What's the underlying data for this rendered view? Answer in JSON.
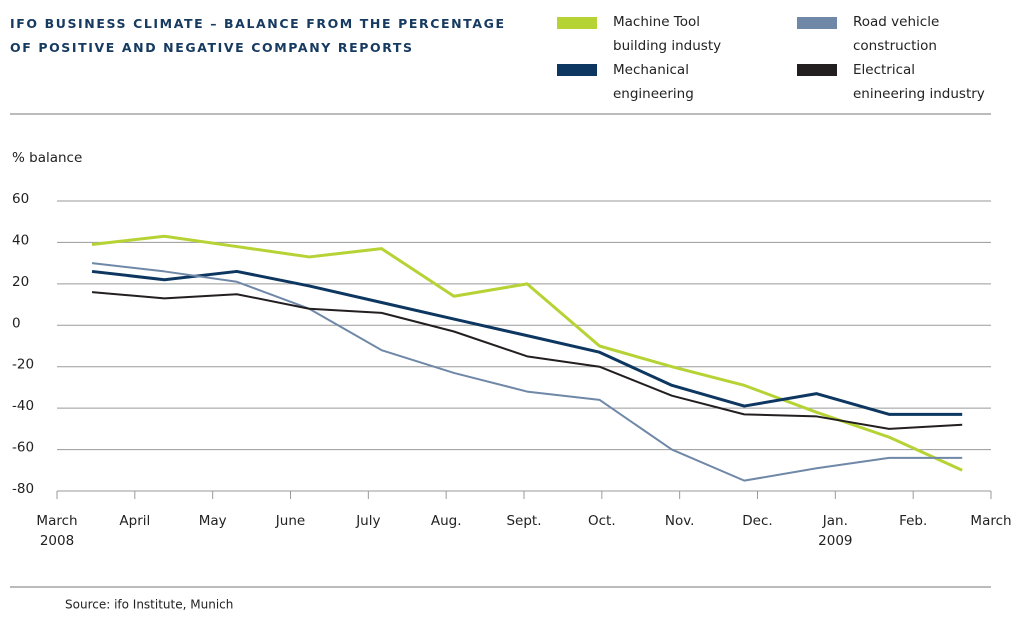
{
  "chart_data": {
    "type": "line",
    "title": "IFO BUSINESS CLIMATE – BALANCE FROM THE PERCENTAGE\nOF POSITIVE AND NEGATIVE COMPANY REPORTS",
    "y_axis_label": "% balance",
    "source": "Source: ifo Institute, Munich",
    "x": [
      0.45,
      1.38,
      2.31,
      3.24,
      4.17,
      5.1,
      6.04,
      6.97,
      7.9,
      8.83,
      9.76,
      10.69,
      11.63
    ],
    "xlim": [
      0,
      12
    ],
    "xticks": [
      {
        "value": 0,
        "label": "March"
      },
      {
        "value": 1,
        "label": "April"
      },
      {
        "value": 2,
        "label": "May"
      },
      {
        "value": 3,
        "label": "June"
      },
      {
        "value": 4,
        "label": "July"
      },
      {
        "value": 5,
        "label": "Aug."
      },
      {
        "value": 6,
        "label": "Sept."
      },
      {
        "value": 7,
        "label": "Oct."
      },
      {
        "value": 8,
        "label": "Nov."
      },
      {
        "value": 9,
        "label": "Dec."
      },
      {
        "value": 10,
        "label": "Jan."
      },
      {
        "value": 11,
        "label": "Feb."
      },
      {
        "value": 12,
        "label": "March"
      }
    ],
    "year_labels": [
      {
        "value": 0,
        "label": "2008"
      },
      {
        "value": 10,
        "label": "2009"
      }
    ],
    "ylim": [
      -80,
      60
    ],
    "yticks": [
      60,
      40,
      20,
      0,
      -20,
      -40,
      -60,
      -80
    ],
    "grid": true,
    "series": [
      {
        "name": "Machine Tool\nbuilding industy",
        "color": "#b5d334",
        "width": 3,
        "values": [
          39,
          43,
          38,
          33,
          37,
          14,
          20,
          -10,
          -20,
          -29,
          -42,
          -54,
          -70
        ]
      },
      {
        "name": "Mechanical\nengineering",
        "color": "#0d3760",
        "width": 3,
        "values": [
          26,
          22,
          26,
          19,
          11,
          3,
          -5,
          -13,
          -29,
          -39,
          -33,
          -43,
          -43
        ]
      },
      {
        "name": "Road vehicle\nconstruction",
        "color": "#6f88a8",
        "width": 2,
        "values": [
          30,
          26,
          21,
          8,
          -12,
          -23,
          -32,
          -36,
          -60,
          -75,
          -69,
          -64,
          -64
        ]
      },
      {
        "name": "Electrical\nenineering industry",
        "color": "#231f20",
        "width": 2,
        "values": [
          16,
          13,
          15,
          8,
          6,
          -3,
          -15,
          -20,
          -34,
          -43,
          -44,
          -50,
          -48
        ]
      }
    ]
  }
}
